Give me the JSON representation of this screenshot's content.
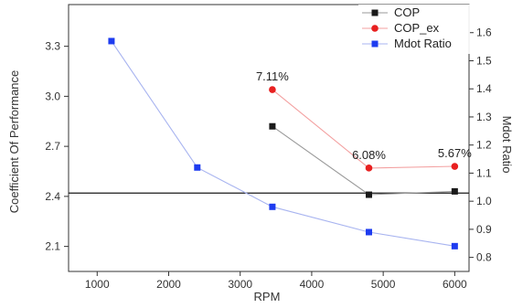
{
  "chart_data": {
    "type": "line",
    "xlabel": "RPM",
    "ylabel_left": "Coefficient Of Performance",
    "ylabel_right": "Mdot Ratio",
    "xlim": [
      600,
      6200
    ],
    "ylim_left": [
      1.95,
      3.55
    ],
    "ylim_right": [
      0.75,
      1.7
    ],
    "x_ticks": [
      1000,
      2000,
      3000,
      4000,
      5000,
      6000
    ],
    "y_left_ticks": [
      2.1,
      2.4,
      2.7,
      3.0,
      3.3
    ],
    "y_right_ticks": [
      0.8,
      0.9,
      1.0,
      1.1,
      1.2,
      1.3,
      1.4,
      1.5,
      1.6
    ],
    "reference_line_left": 2.42,
    "legend_position": "top-right",
    "series": [
      {
        "name": "COP",
        "axis": "left",
        "color": "#1a1a1a",
        "line_color": "#9a9a9a",
        "marker": "square",
        "x": [
          3450,
          4800,
          6000
        ],
        "y": [
          2.82,
          2.41,
          2.43
        ]
      },
      {
        "name": "COP_ex",
        "axis": "left",
        "color": "#e82020",
        "line_color": "#f3a0a0",
        "marker": "circle",
        "x": [
          3450,
          4800,
          6000
        ],
        "y": [
          3.04,
          2.57,
          2.58
        ]
      },
      {
        "name": "Mdot Ratio",
        "axis": "right",
        "color": "#1e3cf0",
        "line_color": "#a8b4f0",
        "marker": "square",
        "x": [
          1200,
          2400,
          3450,
          4800,
          6000
        ],
        "y": [
          1.57,
          1.12,
          0.98,
          0.89,
          0.84
        ]
      }
    ],
    "annotations": [
      {
        "text": "7.11%",
        "x": 3450,
        "y": 3.04
      },
      {
        "text": "6.08%",
        "x": 4800,
        "y": 2.57
      },
      {
        "text": "5.67%",
        "x": 6000,
        "y": 2.58
      }
    ]
  }
}
